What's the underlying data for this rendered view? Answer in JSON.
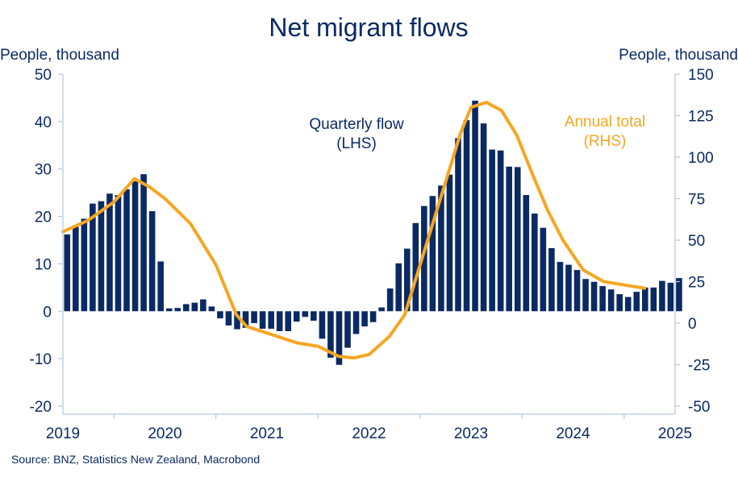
{
  "chart_data": {
    "type": "bar+line",
    "title": "Net migrant flows",
    "ylabel_left": "People, thousand",
    "ylabel_right": "People, thousand",
    "ylim_left": [
      -20,
      50
    ],
    "ylim_right": [
      -50,
      150
    ],
    "yticks_left": [
      -20,
      -10,
      0,
      10,
      20,
      30,
      40,
      50
    ],
    "yticks_right": [
      -50,
      -25,
      0,
      25,
      50,
      75,
      100,
      125,
      150
    ],
    "xlim": [
      2019,
      2025
    ],
    "xticks": [
      "2019",
      "2020",
      "2021",
      "2022",
      "2023",
      "2024",
      "2025"
    ],
    "grid": false,
    "source": "Source: BNZ, Statistics New Zealand, Macrobond",
    "colors": {
      "bars": "#0b2a63",
      "line": "#f5a623",
      "text": "#0b2a63",
      "axis": "#b8c7d8"
    },
    "annotations": [
      {
        "lines": [
          "Quarterly flow",
          "(LHS)"
        ],
        "series": "bars"
      },
      {
        "lines": [
          "Annual total",
          "(RHS)"
        ],
        "series": "line"
      }
    ],
    "series": [
      {
        "kind": "bar",
        "axis": "left",
        "x_start": 2019.0,
        "step": 0.0833,
        "values": [
          16.2,
          17.8,
          19.5,
          22.7,
          23.2,
          24.8,
          24.5,
          25.7,
          27.4,
          28.9,
          21.1,
          10.5,
          0.6,
          0.7,
          1.5,
          1.8,
          2.5,
          1.0,
          -1.5,
          -3.0,
          -3.8,
          -3.5,
          -2.5,
          -3.7,
          -3.7,
          -4.2,
          -4.2,
          -2.2,
          -1.2,
          -2.0,
          -5.8,
          -9.8,
          -11.3,
          -7.7,
          -4.8,
          -3.2,
          -2.3,
          0.8,
          4.8,
          10.1,
          13.2,
          18.6,
          22.2,
          24.3,
          26.5,
          28.8,
          36.5,
          40.3,
          44.4,
          39.6,
          34.1,
          33.9,
          30.5,
          30.4,
          24.5,
          20.6,
          17.6,
          13.3,
          10.4,
          9.8,
          8.7,
          6.8,
          6.2,
          5.3,
          4.6,
          3.6,
          3.0,
          4.1,
          5.0,
          5.0,
          6.4,
          6.0,
          7.0
        ]
      },
      {
        "kind": "line",
        "axis": "right",
        "points": [
          [
            2019.0,
            55
          ],
          [
            2019.25,
            62
          ],
          [
            2019.5,
            73
          ],
          [
            2019.7,
            87
          ],
          [
            2019.85,
            82
          ],
          [
            2020.0,
            75
          ],
          [
            2020.25,
            60
          ],
          [
            2020.5,
            35
          ],
          [
            2020.7,
            5
          ],
          [
            2020.8,
            -2
          ],
          [
            2020.95,
            -5
          ],
          [
            2021.1,
            -8
          ],
          [
            2021.3,
            -12
          ],
          [
            2021.5,
            -14
          ],
          [
            2021.7,
            -20
          ],
          [
            2021.85,
            -21
          ],
          [
            2022.0,
            -19
          ],
          [
            2022.2,
            -8
          ],
          [
            2022.35,
            5
          ],
          [
            2022.55,
            45
          ],
          [
            2022.75,
            85
          ],
          [
            2022.9,
            115
          ],
          [
            2023.0,
            130
          ],
          [
            2023.15,
            133
          ],
          [
            2023.3,
            128
          ],
          [
            2023.45,
            113
          ],
          [
            2023.6,
            90
          ],
          [
            2023.75,
            68
          ],
          [
            2023.9,
            50
          ],
          [
            2024.1,
            32
          ],
          [
            2024.3,
            25
          ],
          [
            2024.6,
            22
          ],
          [
            2024.7,
            21
          ]
        ]
      }
    ]
  }
}
